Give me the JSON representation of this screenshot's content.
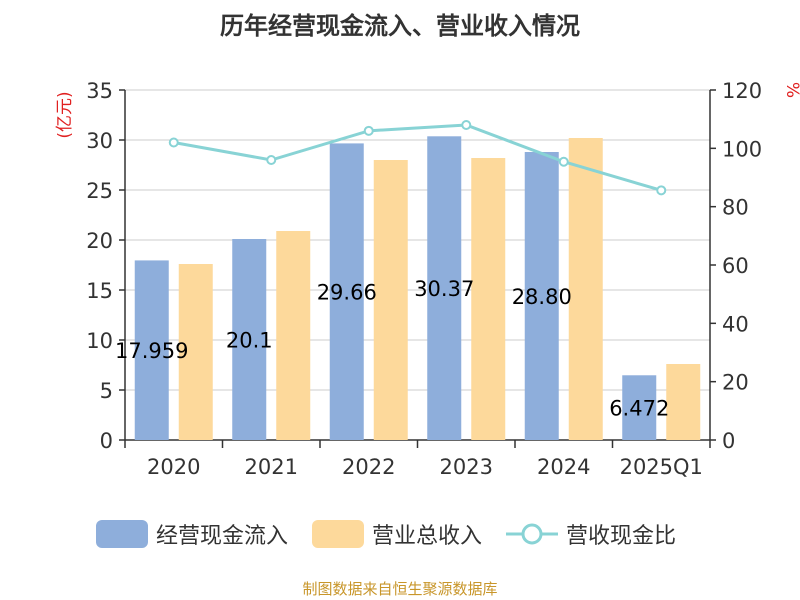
{
  "title": "历年经营现金流入、营业收入情况",
  "source": "制图数据来自恒生聚源数据库",
  "chart_data": {
    "type": "bar",
    "categories": [
      "2020",
      "2021",
      "2022",
      "2023",
      "2024",
      "2025Q1"
    ],
    "series": [
      {
        "name": "经营现金流入",
        "kind": "bar",
        "axis": "left",
        "color": "#8eaedb",
        "values": [
          17.959,
          20.1,
          29.66,
          30.37,
          28.8,
          6.472
        ],
        "labels": [
          "17.959",
          "20.1",
          "29.66",
          "30.37",
          "28.80",
          "6.472"
        ]
      },
      {
        "name": "营业总收入",
        "kind": "bar",
        "axis": "left",
        "color": "#fdd99b",
        "values": [
          17.6,
          20.9,
          28.0,
          28.2,
          30.2,
          7.6
        ]
      },
      {
        "name": "营收现金比",
        "kind": "line",
        "axis": "right",
        "color": "#88d3d5",
        "values": [
          102,
          96,
          106,
          108,
          95.4,
          85.6
        ]
      }
    ],
    "ylabel_left": "(亿元)",
    "ylabel_right": "%",
    "ylim_left": [
      0,
      35
    ],
    "yticks_left": [
      0,
      5,
      10,
      15,
      20,
      25,
      30,
      35
    ],
    "ylim_right": [
      0,
      120
    ],
    "yticks_right": [
      0,
      20,
      40,
      60,
      80,
      100,
      120
    ],
    "grid": true,
    "legend_position": "bottom"
  }
}
